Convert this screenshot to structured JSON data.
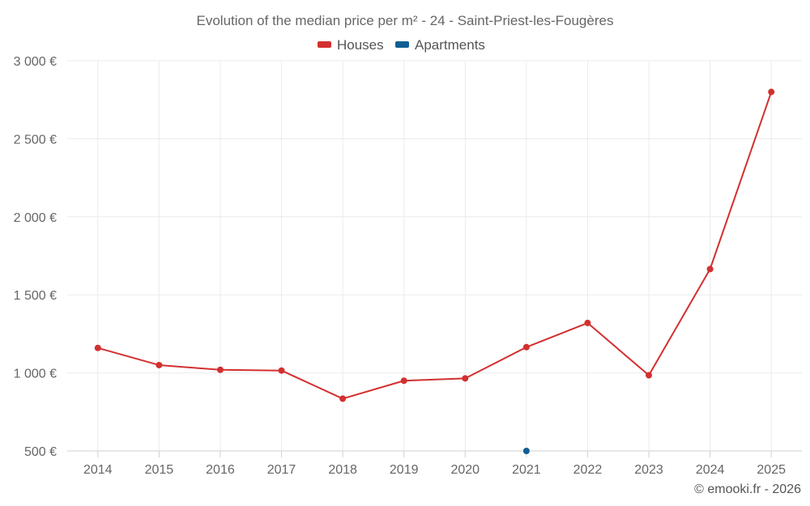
{
  "chart_data": {
    "type": "line",
    "title": "Evolution of the median price per m² - 24 - Saint-Priest-les-Fougères",
    "categories": [
      "2014",
      "2015",
      "2016",
      "2017",
      "2018",
      "2019",
      "2020",
      "2021",
      "2022",
      "2023",
      "2024",
      "2025"
    ],
    "y_tick_labels": [
      "500 €",
      "1 000 €",
      "1 500 €",
      "2 000 €",
      "2 500 €",
      "3 000 €"
    ],
    "y_ticks": [
      500,
      1000,
      1500,
      2000,
      2500,
      3000
    ],
    "ylim": [
      500,
      3000
    ],
    "grid": true,
    "legend_position": "top-center",
    "series": [
      {
        "name": "Houses",
        "color": "#d32f2f",
        "values": [
          1160,
          1050,
          1020,
          1015,
          835,
          950,
          965,
          1165,
          1320,
          985,
          1665,
          2800
        ]
      },
      {
        "name": "Apartments",
        "color": "#0f5f94",
        "values": [
          null,
          null,
          null,
          null,
          null,
          null,
          null,
          500,
          null,
          null,
          null,
          null
        ]
      }
    ],
    "credit": "© emooki.fr - 2026"
  }
}
